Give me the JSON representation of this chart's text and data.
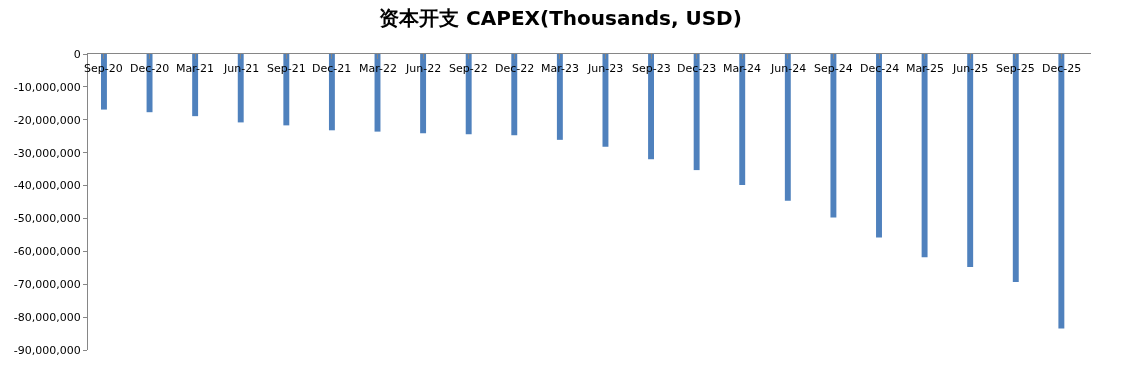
{
  "chart_data": {
    "type": "bar",
    "title": "资本开支 CAPEX(Thousands, USD)",
    "categories": [
      "Sep-20",
      "Dec-20",
      "Mar-21",
      "Jun-21",
      "Sep-21",
      "Dec-21",
      "Mar-22",
      "Jun-22",
      "Sep-22",
      "Dec-22",
      "Mar-23",
      "Jun-23",
      "Sep-23",
      "Dec-23",
      "Mar-24",
      "Jun-24",
      "Sep-24",
      "Dec-24",
      "Mar-25",
      "Jun-25",
      "Sep-25",
      "Dec-25"
    ],
    "values": [
      -16900000,
      -17700000,
      -18900000,
      -20800000,
      -21700000,
      -23200000,
      -23600000,
      -24100000,
      -24400000,
      -24700000,
      -26100000,
      -28200000,
      -32000000,
      -35300000,
      -39800000,
      -44600000,
      -49700000,
      -55800000,
      -61800000,
      -64800000,
      -69300000,
      -83500000
    ],
    "color": "#4f81bd",
    "ylim": [
      -90000000,
      0
    ],
    "yticks": [
      {
        "value": 0,
        "label": "0"
      },
      {
        "value": -10000000,
        "label": "-10,000,000"
      },
      {
        "value": -20000000,
        "label": "-20,000,000"
      },
      {
        "value": -30000000,
        "label": "-30,000,000"
      },
      {
        "value": -40000000,
        "label": "-40,000,000"
      },
      {
        "value": -50000000,
        "label": "-50,000,000"
      },
      {
        "value": -60000000,
        "label": "-60,000,000"
      },
      {
        "value": -70000000,
        "label": "-70,000,000"
      },
      {
        "value": -80000000,
        "label": "-80,000,000"
      },
      {
        "value": -90000000,
        "label": "-90,000,000"
      }
    ],
    "legend": false
  }
}
